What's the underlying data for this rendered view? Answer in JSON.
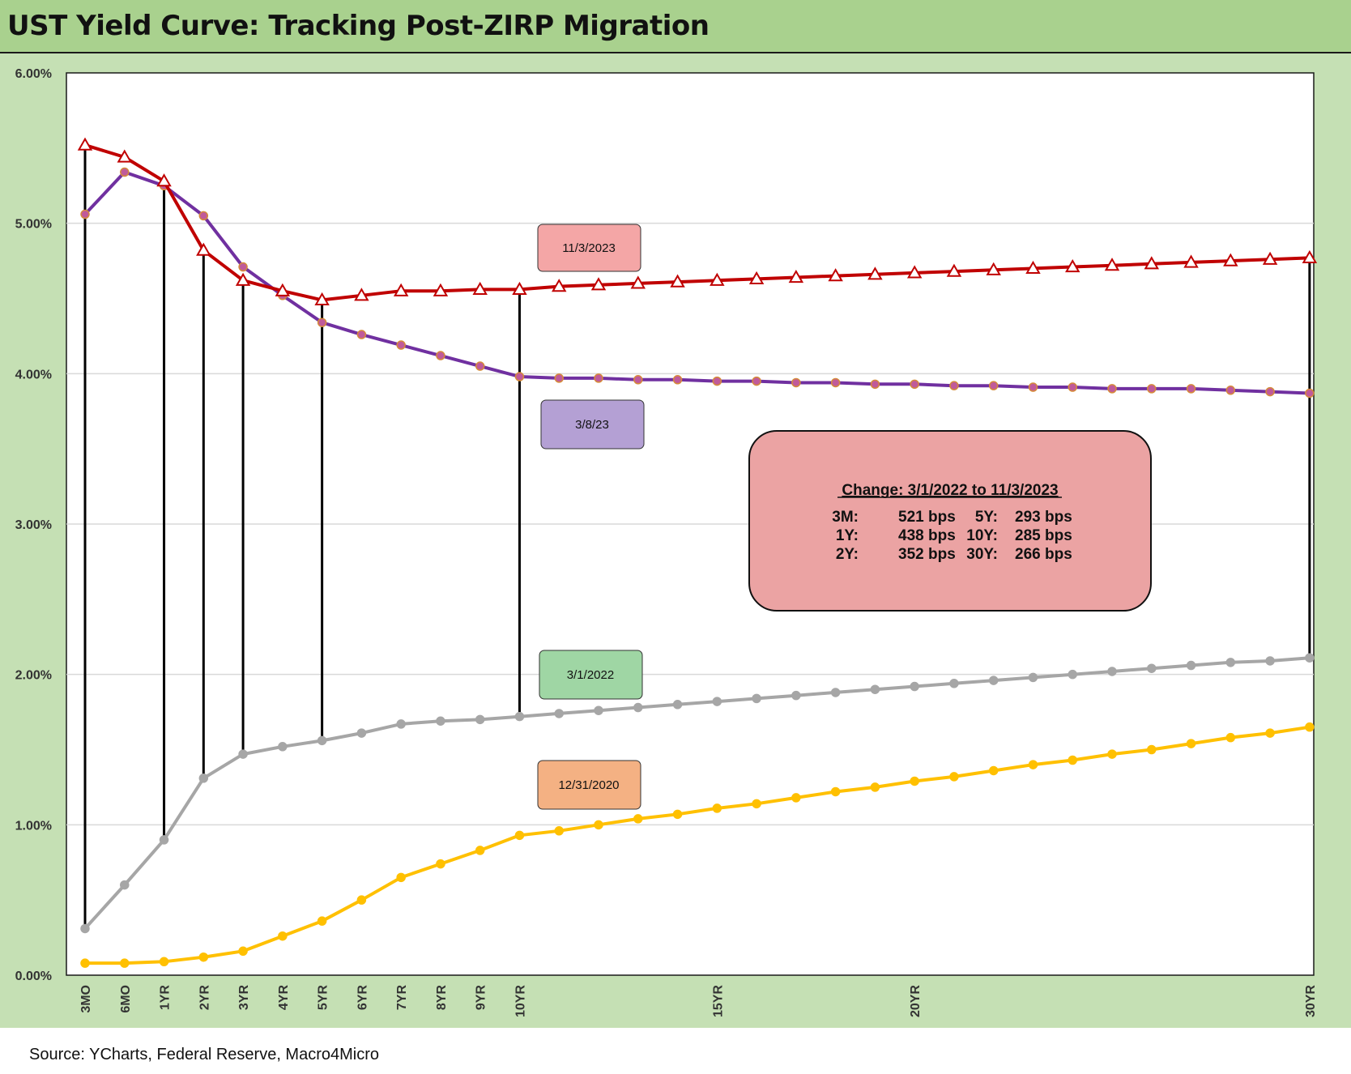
{
  "title": "UST Yield Curve: Tracking Post-ZIRP Migration",
  "source": "Source: YCharts, Federal Reserve, Macro4Micro",
  "colors": {
    "title_bg": "#a9d18e",
    "chart_bg": "#c5e0b4",
    "plot_bg": "#ffffff",
    "grid": "#d9d9d9",
    "series_2023_11_03": "#c00000",
    "series_2023_03_08": "#7030a0",
    "series_2022_03_01": "#a6a6a6",
    "series_2020_12_31": "#ffc000",
    "box_2023_11_03": "#f4a6a6",
    "box_2023_03_08": "#b4a0d4",
    "box_2022_03_01": "#9fd6a4",
    "box_2020_12_31": "#f4b183",
    "change_box": "#eba3a3"
  },
  "chart_data": {
    "type": "line",
    "title": "UST Yield Curve: Tracking Post-ZIRP Migration",
    "ylim": [
      0,
      6
    ],
    "yticks": [
      "0.00%",
      "1.00%",
      "2.00%",
      "3.00%",
      "4.00%",
      "5.00%",
      "6.00%"
    ],
    "ytick_values": [
      0,
      1,
      2,
      3,
      4,
      5,
      6
    ],
    "grid": "horizontal",
    "x_labels": [
      {
        "i": 0,
        "label": "3MO"
      },
      {
        "i": 1,
        "label": "6MO"
      },
      {
        "i": 2,
        "label": "1YR"
      },
      {
        "i": 3,
        "label": "2YR"
      },
      {
        "i": 4,
        "label": "3YR"
      },
      {
        "i": 5,
        "label": "4YR"
      },
      {
        "i": 6,
        "label": "5YR"
      },
      {
        "i": 7,
        "label": "6YR"
      },
      {
        "i": 8,
        "label": "7YR"
      },
      {
        "i": 9,
        "label": "8YR"
      },
      {
        "i": 10,
        "label": "9YR"
      },
      {
        "i": 11,
        "label": "10YR"
      },
      {
        "i": 16,
        "label": "15YR"
      },
      {
        "i": 21,
        "label": "20YR"
      },
      {
        "i": 31,
        "label": "30YR"
      }
    ],
    "series": [
      {
        "name": "11/3/2023",
        "marker": "triangle",
        "values": [
          5.52,
          5.44,
          5.28,
          4.82,
          4.62,
          4.55,
          4.49,
          4.52,
          4.55,
          4.55,
          4.56,
          4.56,
          4.58,
          4.59,
          4.6,
          4.61,
          4.62,
          4.63,
          4.64,
          4.65,
          4.66,
          4.67,
          4.68,
          4.69,
          4.7,
          4.71,
          4.72,
          4.73,
          4.74,
          4.75,
          4.76,
          4.77
        ]
      },
      {
        "name": "3/8/23",
        "marker": "circle",
        "values": [
          5.06,
          5.34,
          5.25,
          5.05,
          4.71,
          4.52,
          4.34,
          4.26,
          4.19,
          4.12,
          4.05,
          3.98,
          3.97,
          3.97,
          3.96,
          3.96,
          3.95,
          3.95,
          3.94,
          3.94,
          3.93,
          3.93,
          3.92,
          3.92,
          3.91,
          3.91,
          3.9,
          3.9,
          3.9,
          3.89,
          3.88,
          3.87
        ]
      },
      {
        "name": "3/1/2022",
        "marker": "circle",
        "values": [
          0.31,
          0.6,
          0.9,
          1.31,
          1.47,
          1.52,
          1.56,
          1.61,
          1.67,
          1.69,
          1.7,
          1.72,
          1.74,
          1.76,
          1.78,
          1.8,
          1.82,
          1.84,
          1.86,
          1.88,
          1.9,
          1.92,
          1.94,
          1.96,
          1.98,
          2.0,
          2.02,
          2.04,
          2.06,
          2.08,
          2.09,
          2.11
        ]
      },
      {
        "name": "12/31/2020",
        "marker": "circle",
        "values": [
          0.08,
          0.08,
          0.09,
          0.12,
          0.16,
          0.26,
          0.36,
          0.5,
          0.65,
          0.74,
          0.83,
          0.93,
          0.96,
          1.0,
          1.04,
          1.07,
          1.11,
          1.14,
          1.18,
          1.22,
          1.25,
          1.29,
          1.32,
          1.36,
          1.4,
          1.43,
          1.47,
          1.5,
          1.54,
          1.58,
          1.61,
          1.65
        ]
      }
    ],
    "drop_lines": {
      "from_series": "11/3/2023",
      "to_series": "3/1/2022",
      "at_indices": [
        0,
        2,
        3,
        4,
        6,
        11,
        31
      ]
    },
    "change_box": {
      "heading": "Change: 3/1/2022 to 11/3/2023",
      "rows": [
        {
          "k1": "3M:",
          "v1": "521 bps",
          "k2": "5Y:",
          "v2": "293 bps"
        },
        {
          "k1": "1Y:",
          "v1": "438 bps",
          "k2": "10Y:",
          "v2": "285 bps"
        },
        {
          "k1": "2Y:",
          "v1": "352 bps",
          "k2": "30Y:",
          "v2": "266 bps"
        }
      ]
    }
  }
}
